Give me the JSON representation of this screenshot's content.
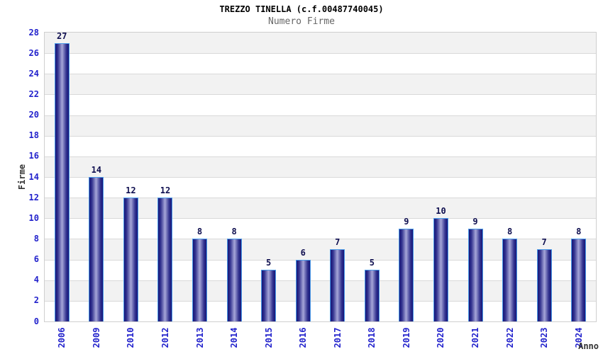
{
  "chart_data": {
    "type": "bar",
    "title": "TREZZO TINELLA (c.f.00487740045)",
    "subtitle": "Numero Firme",
    "xlabel": "Anno",
    "ylabel": "Firme",
    "categories": [
      "2006",
      "2009",
      "2010",
      "2012",
      "2013",
      "2014",
      "2015",
      "2016",
      "2017",
      "2018",
      "2019",
      "2020",
      "2021",
      "2022",
      "2023",
      "2024"
    ],
    "values": [
      27,
      14,
      12,
      12,
      8,
      8,
      5,
      6,
      7,
      5,
      9,
      10,
      9,
      8,
      7,
      8
    ],
    "ylim": [
      0,
      28
    ],
    "ytick_step": 2,
    "grid": "horizontal-bands-alternating",
    "legend": "none",
    "colors": {
      "title": "#000000",
      "subtitle": "#666666",
      "axis_title": "#333333",
      "tick_label": "#2222cc",
      "value_label": "#0f0f50",
      "band_gray": "#f2f2f2",
      "band_white": "#ffffff",
      "gridline": "#d9d9d9",
      "plot_border": "#cfcfcf",
      "bar_border": "#4a9ae8",
      "bar_edge": "#161678",
      "bar_mid": "#31318e",
      "bar_center": "#a6a6d8"
    }
  }
}
